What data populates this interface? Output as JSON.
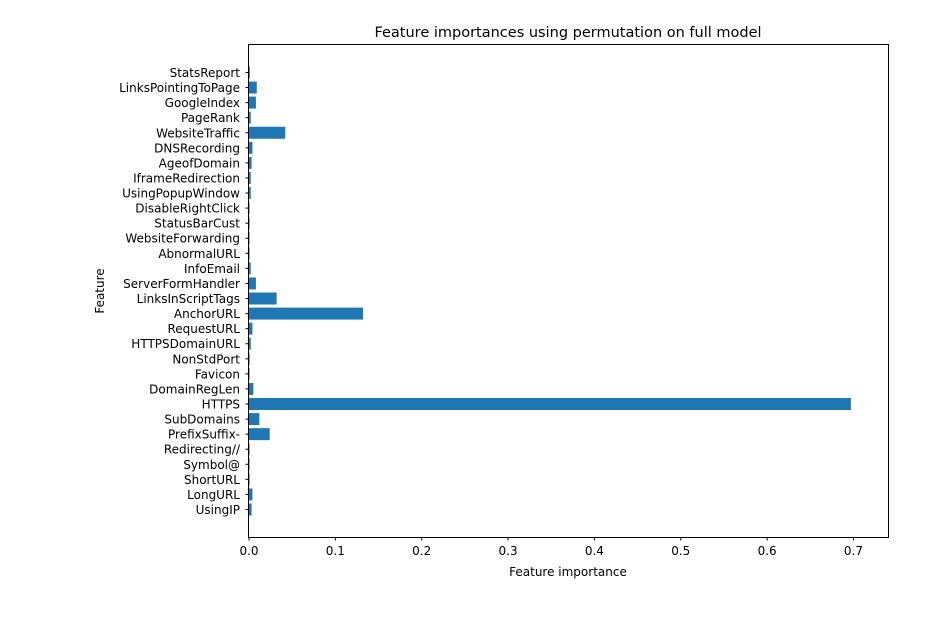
{
  "chart_data": {
    "type": "bar",
    "orientation": "horizontal",
    "title": "Feature importances using permutation on full model",
    "xlabel": "Feature importance",
    "ylabel": "Feature",
    "xlim": [
      0,
      0.74
    ],
    "xticks": [
      "0.0",
      "0.1",
      "0.2",
      "0.3",
      "0.4",
      "0.5",
      "0.6",
      "0.7"
    ],
    "grid": false,
    "bar_color": "#1f77b4",
    "categories": [
      "UsingIP",
      "LongURL",
      "ShortURL",
      "Symbol@",
      "Redirecting//",
      "PrefixSuffix-",
      "SubDomains",
      "HTTPS",
      "DomainRegLen",
      "Favicon",
      "NonStdPort",
      "HTTPSDomainURL",
      "RequestURL",
      "AnchorURL",
      "LinksInScriptTags",
      "ServerFormHandler",
      "InfoEmail",
      "AbnormalURL",
      "WebsiteForwarding",
      "StatusBarCust",
      "DisableRightClick",
      "UsingPopupWindow",
      "IframeRedirection",
      "AgeofDomain",
      "DNSRecording",
      "WebsiteTraffic",
      "PageRank",
      "GoogleIndex",
      "LinksPointingToPage",
      "StatsReport"
    ],
    "values": [
      0.003,
      0.004,
      0.0005,
      0.0005,
      0.0005,
      0.024,
      0.012,
      0.697,
      0.005,
      0.0005,
      0.0005,
      0.002,
      0.004,
      0.132,
      0.032,
      0.008,
      0.002,
      0.0005,
      0.0005,
      0.0005,
      0.0005,
      0.002,
      0.002,
      0.003,
      0.004,
      0.042,
      0.002,
      0.008,
      0.009,
      0.001
    ]
  }
}
